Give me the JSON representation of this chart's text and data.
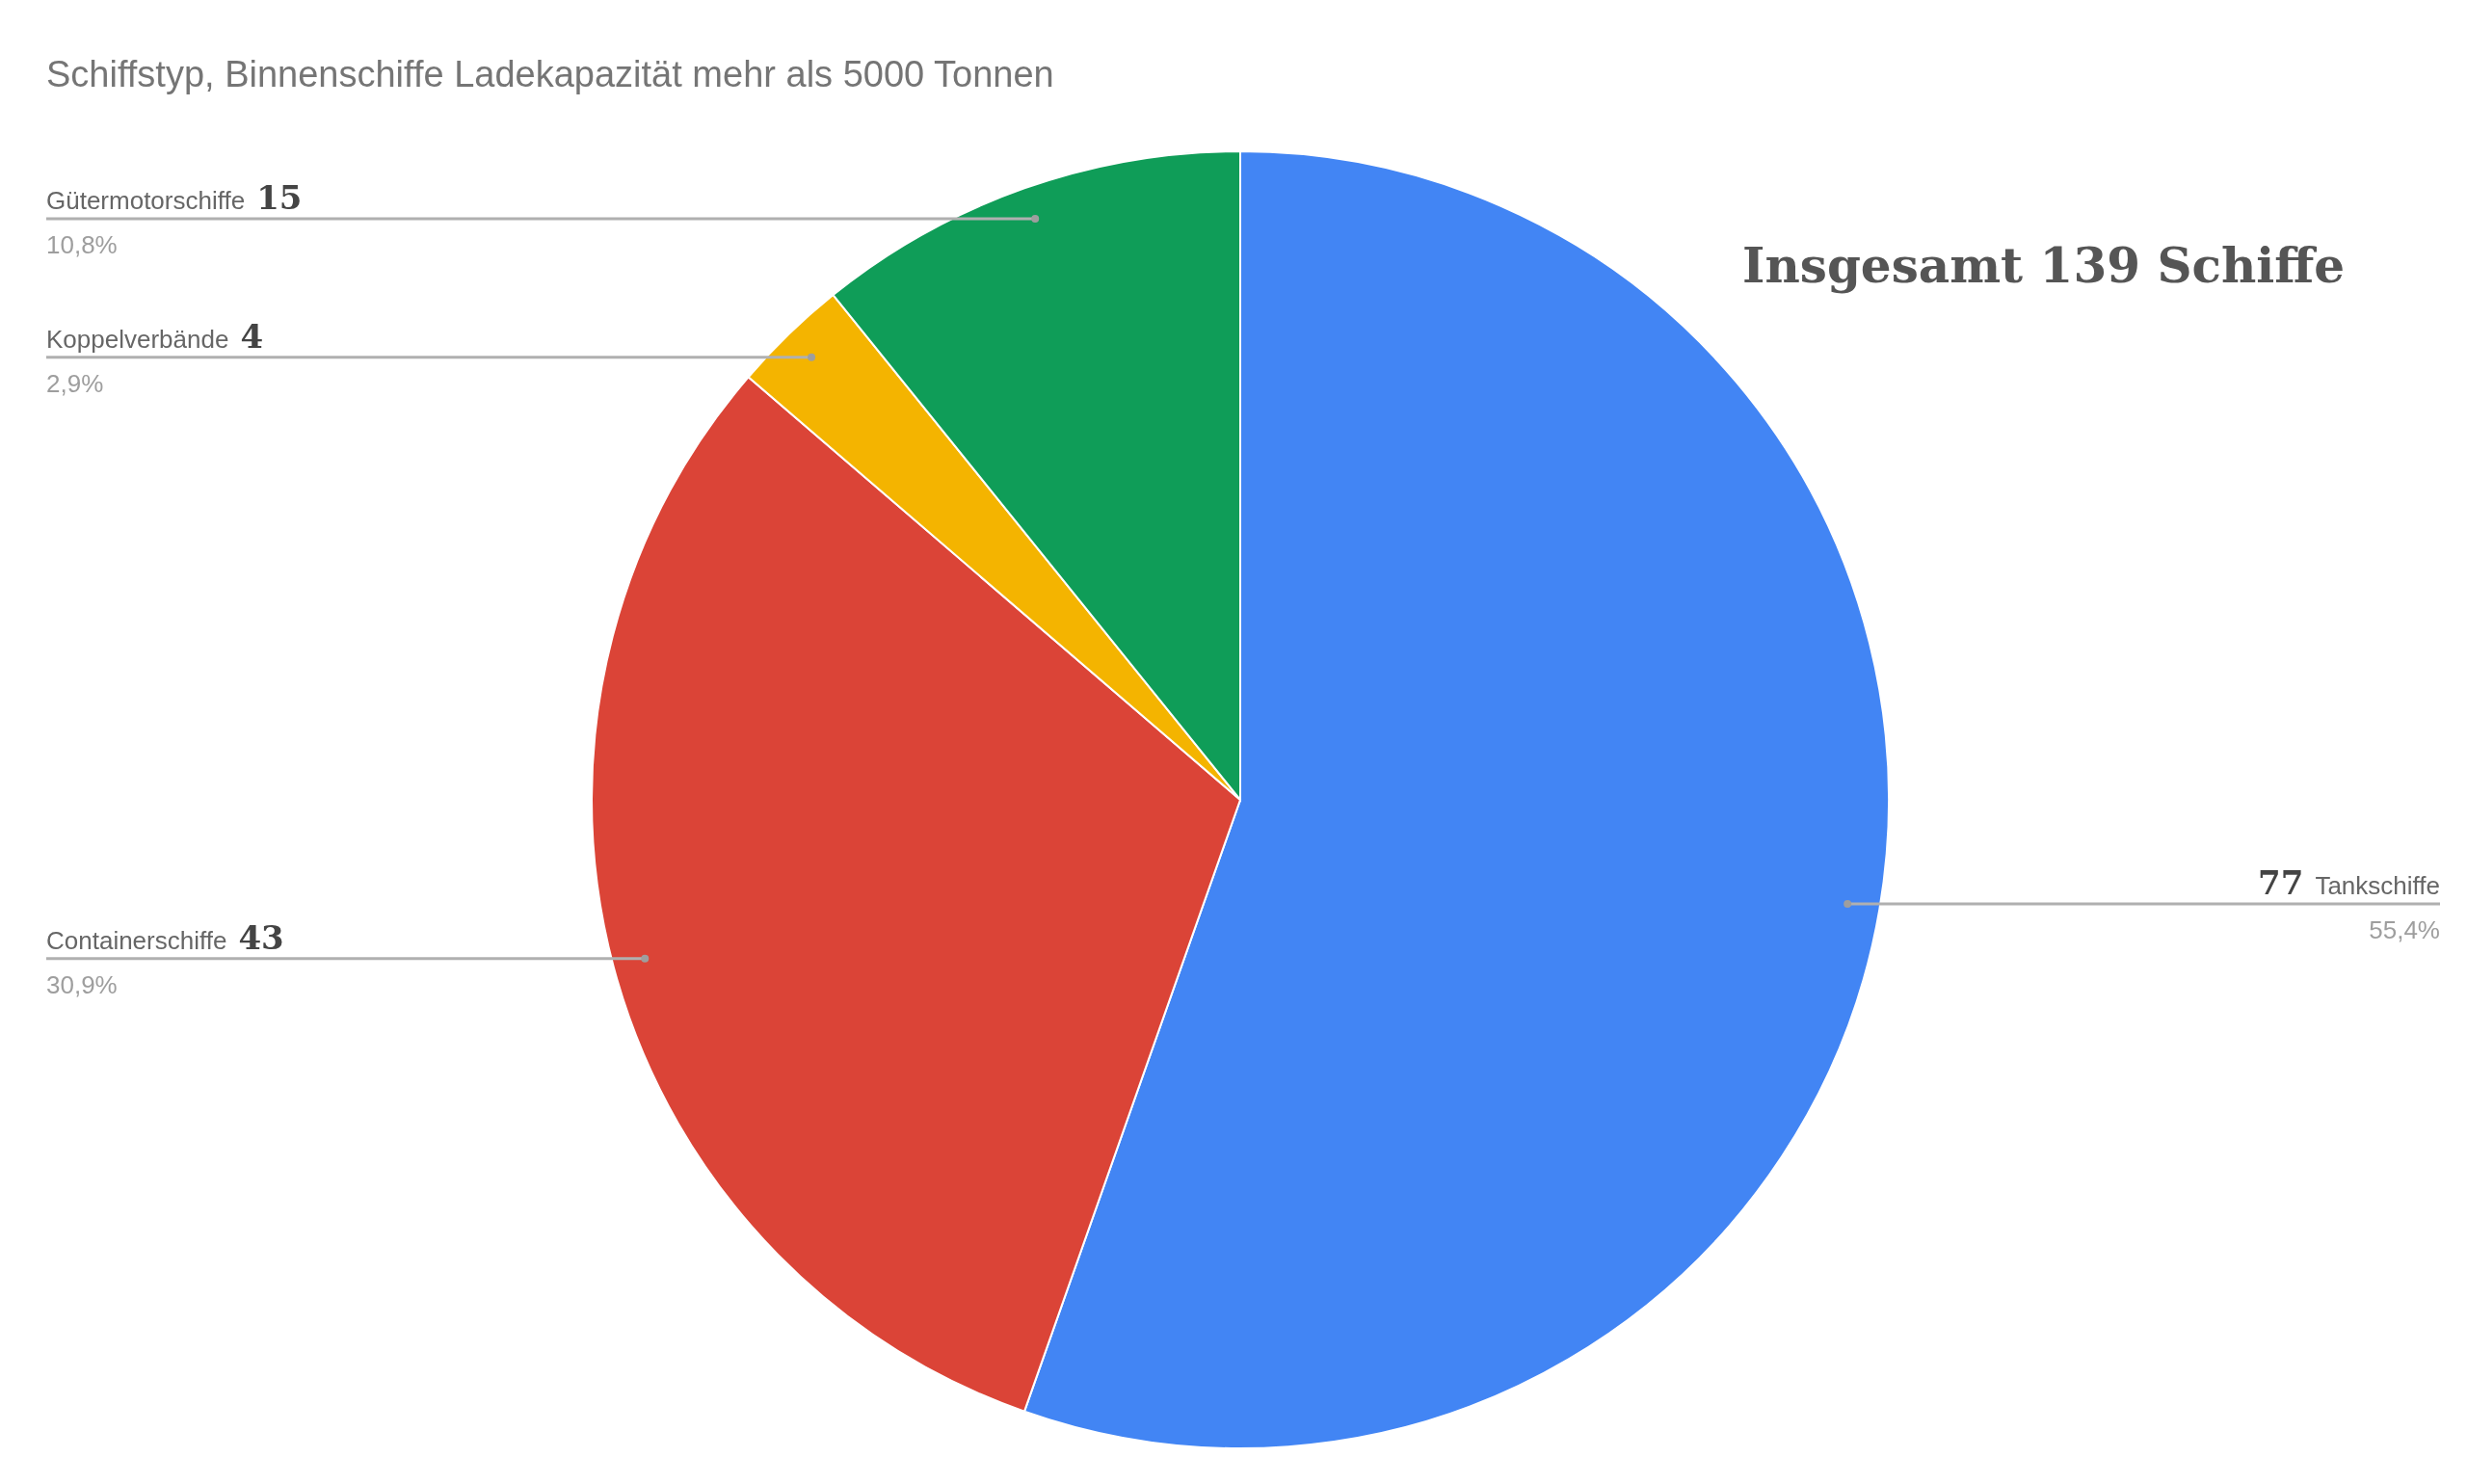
{
  "chart_data": {
    "type": "pie",
    "title": "Schiffstyp, Binnenschiffe Ladekapazität mehr als 5000 Tonnen",
    "categories": [
      "Tankschiffe",
      "Containerschiffe",
      "Koppelverbände",
      "Gütermotorschiffe"
    ],
    "values": [
      55.4,
      30.9,
      2.9,
      10.8
    ],
    "colors": [
      "#4285f4",
      "#db4437",
      "#f4b400",
      "#0f9d58"
    ],
    "value_labels": [
      "55,4%",
      "30,9%",
      "2,9%",
      "10,8%"
    ],
    "annotations": [
      "Insgesamt 139 Schiffe",
      {
        "text": "77",
        "x": "Tankschiffe"
      },
      {
        "text": "43",
        "x": "Containerschiffe"
      },
      {
        "text": "4",
        "x": "Koppelverbände"
      },
      {
        "text": "15",
        "x": "Gütermotorschiffe"
      }
    ],
    "legend": false
  }
}
